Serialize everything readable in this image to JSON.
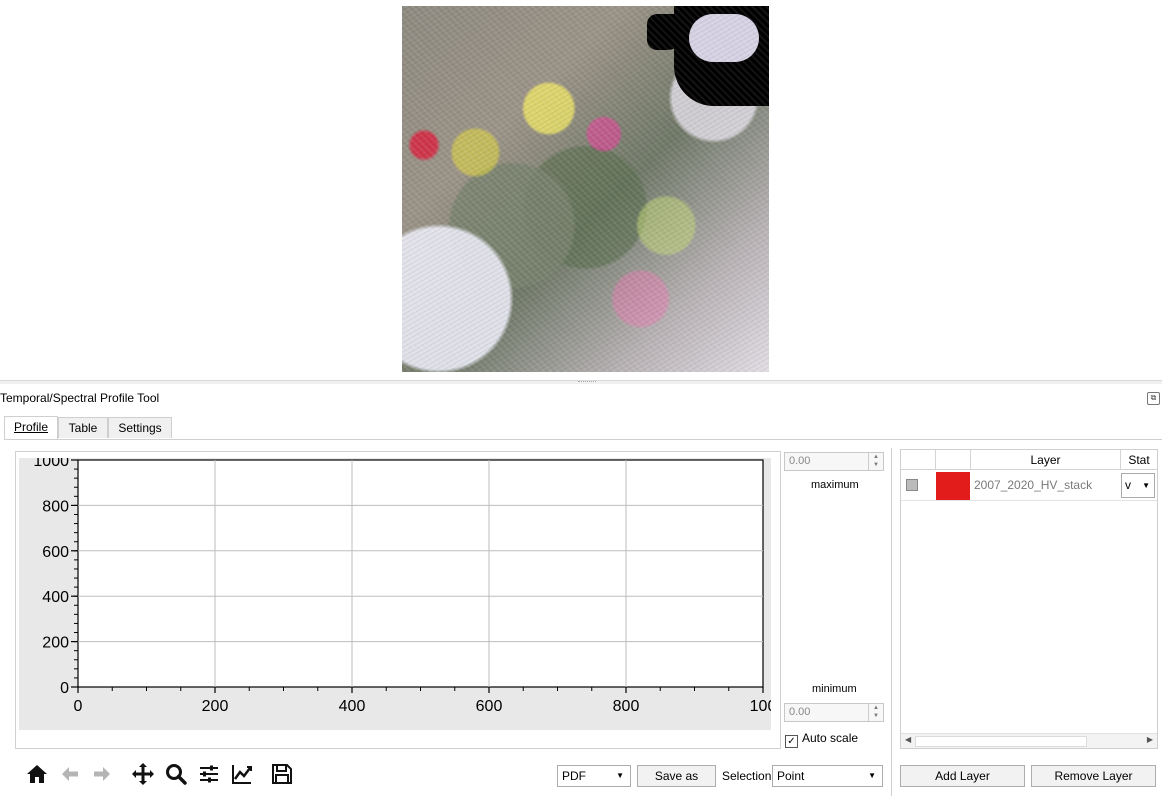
{
  "panel": {
    "title": "Temporal/Spectral Profile Tool"
  },
  "tabs": [
    {
      "label": "Profile",
      "active": true
    },
    {
      "label": "Table",
      "active": false
    },
    {
      "label": "Settings",
      "active": false
    }
  ],
  "scale": {
    "maximum_value": "0.00",
    "maximum_label": "maximum",
    "minimum_value": "0.00",
    "minimum_label": "minimum",
    "auto_scale_label": "Auto scale",
    "auto_scale_checked": true
  },
  "chart_data": {
    "type": "line",
    "series": [],
    "xlim": [
      0,
      1000
    ],
    "ylim": [
      0,
      1000
    ],
    "x_ticks": [
      "0",
      "200",
      "400",
      "600",
      "800",
      "100"
    ],
    "y_ticks": [
      "0",
      "200",
      "400",
      "600",
      "800",
      "1000"
    ],
    "grid": true
  },
  "layer_table": {
    "columns": [
      "",
      "",
      "Layer",
      "Stat"
    ],
    "rows": [
      {
        "checked": false,
        "color": "#e21b1b",
        "layer": "2007_2020_HV_stack",
        "stat": "v"
      }
    ]
  },
  "toolbar": {
    "icons": [
      "home-icon",
      "back-arrow-icon",
      "forward-arrow-icon",
      "pan-icon",
      "zoom-icon",
      "configure-icon",
      "line-style-icon",
      "save-icon"
    ],
    "format_value": "PDF",
    "save_as_label": "Save as",
    "selection_label": "Selection",
    "selection_value": "Point"
  },
  "layer_buttons": {
    "add_label": "Add Layer",
    "remove_label": "Remove Layer"
  }
}
